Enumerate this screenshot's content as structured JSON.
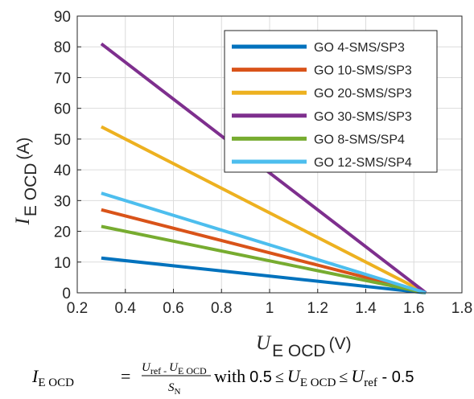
{
  "chart_data": {
    "type": "line",
    "xlabel": {
      "symbol": "U",
      "subscript": "E OCD",
      "unit": "(V)"
    },
    "ylabel": {
      "symbol": "I",
      "subscript": "E OCD",
      "unit": "(A)"
    },
    "xlim": [
      0.2,
      1.8
    ],
    "ylim": [
      0,
      90
    ],
    "xticks": [
      "0.2",
      "0.4",
      "0.6",
      "0.8",
      "1",
      "1.2",
      "1.4",
      "1.6",
      "1.8"
    ],
    "yticks": [
      "0",
      "10",
      "20",
      "30",
      "40",
      "50",
      "60",
      "70",
      "80",
      "90"
    ],
    "grid": true,
    "legend_position": "top-right",
    "series": [
      {
        "name": "GO 4-SMS/SP3",
        "color": "#0072BD",
        "x": [
          0.3,
          1.65
        ],
        "y": [
          11.3,
          0
        ]
      },
      {
        "name": "GO 10-SMS/SP3",
        "color": "#D95319",
        "x": [
          0.3,
          1.65
        ],
        "y": [
          27,
          0
        ]
      },
      {
        "name": "GO 20-SMS/SP3",
        "color": "#EDB120",
        "x": [
          0.3,
          1.65
        ],
        "y": [
          54,
          0
        ]
      },
      {
        "name": "GO 30-SMS/SP3",
        "color": "#7E2F8E",
        "x": [
          0.3,
          1.65
        ],
        "y": [
          81,
          0
        ]
      },
      {
        "name": "GO 8-SMS/SP4",
        "color": "#77AC30",
        "x": [
          0.3,
          1.65
        ],
        "y": [
          21.6,
          0
        ]
      },
      {
        "name": "GO 12-SMS/SP4",
        "color": "#4DBEEE",
        "x": [
          0.3,
          1.65
        ],
        "y": [
          32.4,
          0
        ]
      }
    ]
  },
  "formula": {
    "lhs_symbol": "I",
    "lhs_sub": "E OCD",
    "equals": "=",
    "num_u1": "U",
    "num_sub1": "ref - ",
    "num_u2": "U",
    "num_sub2": "E OCD",
    "den_s": "S",
    "den_sub": "N",
    "with_text": "with",
    "lower": "0.5",
    "leq1": "≤",
    "mid_u": "U",
    "mid_sub": "E OCD",
    "leq2": "≤",
    "upper_u": "U",
    "upper_sub": "ref",
    "minus_text": " - 0.5"
  }
}
